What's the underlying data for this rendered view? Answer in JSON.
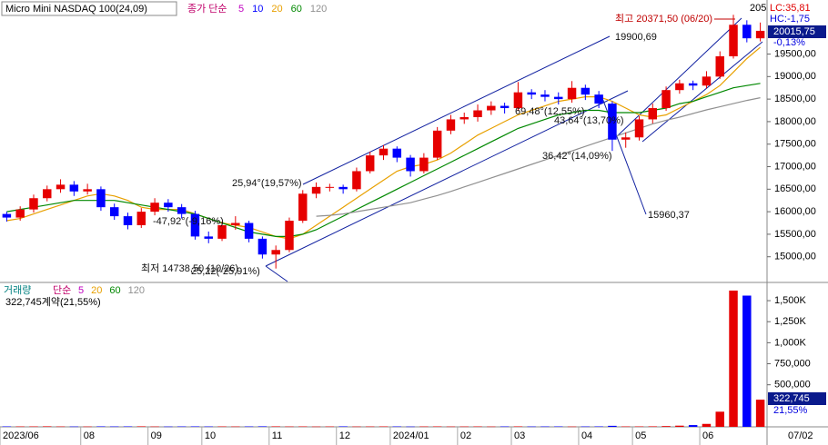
{
  "header": {
    "title": "Micro Mini NASDAQ 100(24,09)",
    "ma_label": "종가 단순"
  },
  "chart_data": [
    {
      "type": "candlestick",
      "categories": [
        "2023/06",
        null,
        null,
        null,
        null,
        null,
        "08",
        null,
        null,
        null,
        null,
        "09",
        null,
        null,
        null,
        "10",
        null,
        null,
        null,
        null,
        "11",
        null,
        null,
        null,
        null,
        "12",
        null,
        null,
        null,
        "2024/01",
        null,
        null,
        null,
        null,
        "02",
        null,
        null,
        null,
        "03",
        null,
        null,
        null,
        null,
        "04",
        null,
        null,
        null,
        "05",
        null,
        null,
        null,
        null,
        "06",
        null,
        null,
        null,
        null
      ],
      "open": [
        15950,
        15870,
        16050,
        16300,
        16500,
        16600,
        16450,
        16500,
        16100,
        15900,
        15700,
        16000,
        16200,
        16100,
        15950,
        15450,
        15400,
        15700,
        15750,
        15400,
        15050,
        15150,
        15800,
        16400,
        16550,
        16550,
        16500,
        16900,
        17250,
        17400,
        17200,
        16900,
        17200,
        17800,
        18050,
        18100,
        18250,
        18350,
        18300,
        18650,
        18600,
        18550,
        18500,
        18750,
        18600,
        18400,
        17600,
        17650,
        18050,
        18300,
        18700,
        18850,
        18800,
        19000,
        19450,
        20150,
        19850
      ],
      "high": [
        16000,
        16120,
        16380,
        16580,
        16720,
        16680,
        16620,
        16560,
        16180,
        15980,
        16080,
        16300,
        16280,
        16170,
        16020,
        15560,
        15780,
        15900,
        15800,
        15450,
        15250,
        15870,
        16480,
        16650,
        16620,
        16600,
        16980,
        17330,
        17480,
        17450,
        17260,
        17300,
        17880,
        18150,
        18200,
        18380,
        18450,
        18420,
        18880,
        18720,
        18700,
        18650,
        18900,
        18820,
        18680,
        18450,
        17760,
        18120,
        18400,
        18780,
        18930,
        18910,
        19120,
        19560,
        20371.5,
        20250,
        20200
      ],
      "low": [
        15780,
        15800,
        15980,
        16230,
        16420,
        16350,
        16380,
        16020,
        15820,
        15610,
        15640,
        15920,
        16000,
        15850,
        15380,
        15300,
        15350,
        15600,
        15320,
        14960,
        14738.5,
        15100,
        15750,
        16300,
        16450,
        16400,
        16450,
        16850,
        17150,
        17100,
        16780,
        16850,
        17150,
        17720,
        17950,
        18000,
        18150,
        18180,
        18240,
        18500,
        18450,
        18380,
        18420,
        18480,
        18300,
        17350,
        17420,
        17580,
        17960,
        18240,
        18620,
        18700,
        18740,
        18950,
        19400,
        19760,
        19780
      ],
      "close": [
        15870,
        16050,
        16300,
        16500,
        16600,
        16450,
        16500,
        16100,
        15900,
        15700,
        16000,
        16200,
        16100,
        15950,
        15450,
        15400,
        15700,
        15750,
        15400,
        15050,
        15150,
        15800,
        16400,
        16550,
        16550,
        16500,
        16900,
        17250,
        17400,
        17200,
        16900,
        17200,
        17800,
        18050,
        18100,
        18250,
        18350,
        18300,
        18650,
        18600,
        18550,
        18500,
        18750,
        18600,
        18400,
        17600,
        17650,
        18050,
        18300,
        18700,
        18850,
        18800,
        19000,
        19450,
        20150,
        19850,
        20015.75
      ],
      "up_color": "#e60000",
      "down_color": "#0000ff",
      "ylim": [
        14450,
        20700
      ],
      "yticks": [
        {
          "value": 15000,
          "label": "15000,00"
        },
        {
          "value": 15500,
          "label": "15500,00"
        },
        {
          "value": 16000,
          "label": "16000,00"
        },
        {
          "value": 16500,
          "label": "16500,00"
        },
        {
          "value": 17000,
          "label": "17000,00"
        },
        {
          "value": 17500,
          "label": "17500,00"
        },
        {
          "value": 18000,
          "label": "18000,00"
        },
        {
          "value": 18500,
          "label": "18500,00"
        },
        {
          "value": 19000,
          "label": "19000,00"
        },
        {
          "value": 19500,
          "label": "19500,00"
        }
      ],
      "moving_averages": [
        {
          "name": "5",
          "color": "#c000c0"
        },
        {
          "name": "10",
          "color": "#0000ff"
        },
        {
          "name": "20",
          "color": "#e8a000",
          "values": [
            15800,
            15850,
            15950,
            16050,
            16150,
            16250,
            16350,
            16400,
            16350,
            16250,
            16100,
            16050,
            16050,
            16050,
            15950,
            15850,
            15750,
            15700,
            15650,
            15550,
            15450,
            15400,
            15500,
            15700,
            15900,
            16100,
            16300,
            16500,
            16700,
            16900,
            17000,
            17050,
            17150,
            17300,
            17500,
            17700,
            17850,
            18000,
            18150,
            18250,
            18350,
            18450,
            18500,
            18550,
            18550,
            18450,
            18300,
            18150,
            18100,
            18150,
            18300,
            18450,
            18600,
            18800,
            19100,
            19400,
            19650
          ]
        },
        {
          "name": "60",
          "color": "#008800",
          "values": [
            16000,
            16050,
            16100,
            16150,
            16200,
            16250,
            16250,
            16250,
            16250,
            16200,
            16150,
            16100,
            16050,
            16000,
            15950,
            15850,
            15750,
            15650,
            15550,
            15500,
            15450,
            15450,
            15500,
            15600,
            15750,
            15900,
            16050,
            16200,
            16350,
            16500,
            16650,
            16800,
            16950,
            17100,
            17250,
            17400,
            17550,
            17700,
            17850,
            17950,
            18050,
            18150,
            18200,
            18250,
            18250,
            18200,
            18200,
            18200,
            18250,
            18300,
            18400,
            18450,
            18550,
            18650,
            18750,
            18800,
            18850
          ]
        },
        {
          "name": "120",
          "color": "#909090",
          "values": [
            null,
            null,
            null,
            null,
            null,
            null,
            null,
            null,
            null,
            null,
            null,
            null,
            null,
            null,
            null,
            null,
            null,
            null,
            null,
            null,
            null,
            null,
            null,
            15900,
            15920,
            15950,
            16000,
            16050,
            16100,
            16150,
            16200,
            16280,
            16360,
            16450,
            16550,
            16650,
            16750,
            16850,
            16950,
            17050,
            17150,
            17250,
            17350,
            17450,
            17550,
            17650,
            17750,
            17850,
            17950,
            18030,
            18100,
            18180,
            18260,
            18330,
            18400,
            18470,
            18530
          ]
        }
      ],
      "annotations": [
        "25,94°(19,57%)",
        "-47,92°(-9,16%)",
        "최저 14738,50 (10/26)",
        "25,22(-25,91%)",
        "69,48°(12,55%)",
        "43,64°(13,70%)",
        "36,42°(14,09%)",
        "15960,37",
        "19900,69",
        "최고 20371,50 (06/20)"
      ],
      "current_price_label": "20015,75",
      "change_label": "-0,13%",
      "lc_label": "LC:35,81",
      "hc_label": "HC:-1,75",
      "truncated_label": "205"
    },
    {
      "type": "bar",
      "title": "거래량",
      "ma_label": "단순",
      "moving_average_names": [
        {
          "name": "5",
          "color": "#c000c0"
        },
        {
          "name": "20",
          "color": "#e8a000"
        },
        {
          "name": "60",
          "color": "#008800"
        },
        {
          "name": "120",
          "color": "#909090"
        }
      ],
      "values": [
        5200,
        4800,
        5100,
        6300,
        4500,
        4100,
        3900,
        5600,
        4700,
        5300,
        6100,
        4200,
        3800,
        4900,
        5500,
        4600,
        5000,
        4300,
        4800,
        6200,
        5900,
        4400,
        5100,
        3700,
        4600,
        5800,
        4000,
        4500,
        5200,
        4900,
        3600,
        4700,
        5300,
        4100,
        4400,
        5000,
        3900,
        4800,
        5600,
        4200,
        4700,
        5100,
        3800,
        4600,
        5400,
        12000,
        4800,
        5200,
        6000,
        9000,
        14000,
        21000,
        35000,
        180000,
        1620000,
        1560000,
        322745
      ],
      "ylim": [
        0,
        1695000
      ],
      "yticks": [
        {
          "value": 500000,
          "label": "500,000"
        },
        {
          "value": 750000,
          "label": "750,000"
        },
        {
          "value": 1000000,
          "label": "1,000K"
        },
        {
          "value": 1250000,
          "label": "1,250K"
        },
        {
          "value": 1500000,
          "label": "1,500K"
        }
      ],
      "info_label": "322,745계약(21,55%)",
      "current_label": "322,745",
      "ratio_label": "21,55%"
    }
  ],
  "date_label": "07/02"
}
